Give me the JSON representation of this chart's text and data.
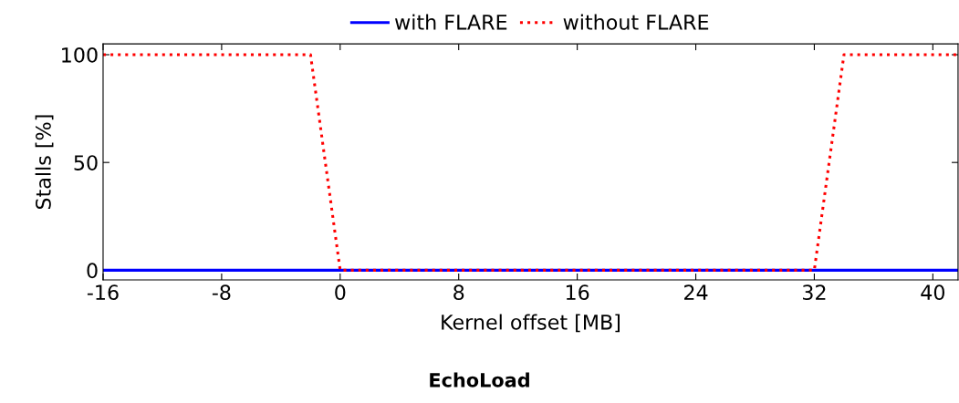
{
  "chart_data": {
    "type": "line",
    "title": "EchoLoad",
    "xlabel": "Kernel offset [MB]",
    "ylabel": "Stalls [%]",
    "xlim": [
      -16,
      41.7
    ],
    "ylim": [
      -4.5,
      105
    ],
    "xticks": [
      -16,
      -8,
      0,
      8,
      16,
      24,
      32,
      40
    ],
    "yticks": [
      0,
      50,
      100
    ],
    "legend": "top",
    "grid": false,
    "series": [
      {
        "name": "with FLARE",
        "color": "#0000ff",
        "line_style": "solid",
        "x": [
          -16,
          41.7
        ],
        "values": [
          0,
          0
        ]
      },
      {
        "name": "without FLARE",
        "color": "#ff0000",
        "line_style": "dotted",
        "x": [
          -16,
          -2,
          0,
          32,
          34,
          41.7
        ],
        "values": [
          100,
          100,
          0,
          0,
          100,
          100
        ]
      }
    ]
  }
}
